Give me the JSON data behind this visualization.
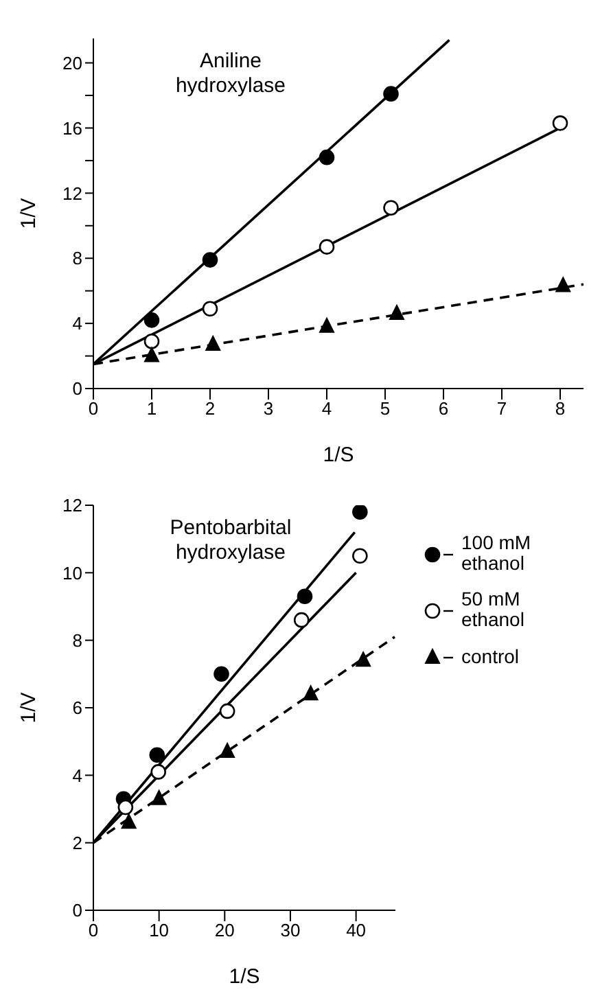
{
  "chart_data": [
    {
      "type": "scatter",
      "title": "Aniline hydroxylase",
      "xlabel": "1/S",
      "ylabel": "1/V",
      "xlim": [
        0,
        8.4
      ],
      "ylim": [
        0,
        21.5
      ],
      "xticks": [
        0,
        1,
        2,
        3,
        4,
        5,
        6,
        7,
        8
      ],
      "yticks": [
        0,
        {
          "value": 2,
          "label": null
        },
        4,
        {
          "value": 6,
          "label": null
        },
        8,
        {
          "value": 10,
          "label": null
        },
        12,
        {
          "value": 14,
          "label": null
        },
        16,
        {
          "value": 18,
          "label": null
        },
        20
      ],
      "grid": false,
      "legend": false,
      "series": [
        {
          "marker": "circle",
          "color": "#000000",
          "x": [
            1,
            2,
            4,
            5.1
          ],
          "values": [
            4.2,
            7.9,
            14.2,
            18.1
          ]
        },
        {
          "marker": "circle",
          "color": "#ffffff",
          "x": [
            1,
            2,
            4,
            5.1,
            8
          ],
          "values": [
            2.9,
            4.9,
            8.7,
            11.1,
            16.3
          ]
        },
        {
          "marker": "triangle",
          "color": "#000000",
          "x": [
            1,
            2.05,
            4,
            5.2,
            8.05
          ],
          "values": [
            2.0,
            2.7,
            3.8,
            4.6,
            6.3
          ]
        },
        {
          "type": "line",
          "marker": "none",
          "line_style": "solid",
          "color": "#000000",
          "x": [
            0,
            6.1
          ],
          "values": [
            1.5,
            21.4
          ]
        },
        {
          "type": "line",
          "marker": "none",
          "line_style": "solid",
          "color": "#000000",
          "x": [
            0,
            8
          ],
          "values": [
            1.5,
            16.0
          ]
        },
        {
          "type": "line",
          "marker": "none",
          "line_style": "dashed",
          "color": "#000000",
          "x": [
            0,
            8.4
          ],
          "values": [
            1.5,
            6.4
          ]
        }
      ]
    },
    {
      "type": "scatter",
      "title": "Pentobarbital hydroxylase",
      "xlabel": "1/S",
      "ylabel": "1/V",
      "xlim": [
        0,
        46
      ],
      "ylim": [
        0,
        12
      ],
      "xticks": [
        0,
        10,
        20,
        30,
        40
      ],
      "yticks": [
        0,
        2,
        4,
        6,
        8,
        10,
        12
      ],
      "grid": false,
      "legend": "right",
      "series": [
        {
          "name": "100 mM ethanol",
          "marker": "circle",
          "color": "#000000",
          "x": [
            4.6,
            9.7,
            19.5,
            32.2,
            40.6
          ],
          "values": [
            3.3,
            4.6,
            7.0,
            9.3,
            11.8
          ]
        },
        {
          "name": "50 mM ethanol",
          "marker": "circle",
          "color": "#ffffff",
          "x": [
            4.9,
            9.9,
            20.4,
            31.7,
            40.6
          ],
          "values": [
            3.05,
            4.1,
            5.9,
            8.6,
            10.5
          ]
        },
        {
          "name": "control",
          "marker": "triangle",
          "color": "#000000",
          "x": [
            5.4,
            10,
            20.4,
            33.1,
            41.1
          ],
          "values": [
            2.6,
            3.3,
            4.7,
            6.4,
            7.4
          ]
        },
        {
          "type": "line",
          "marker": "none",
          "line_style": "solid",
          "color": "#000000",
          "x": [
            0,
            39.8
          ],
          "values": [
            2.0,
            11.2
          ]
        },
        {
          "type": "line",
          "marker": "none",
          "line_style": "solid",
          "color": "#000000",
          "x": [
            0,
            40
          ],
          "values": [
            2.0,
            10.0
          ]
        },
        {
          "type": "line",
          "marker": "none",
          "line_style": "dashed",
          "color": "#000000",
          "x": [
            0,
            45.9
          ],
          "values": [
            2.0,
            8.1
          ]
        }
      ]
    }
  ]
}
